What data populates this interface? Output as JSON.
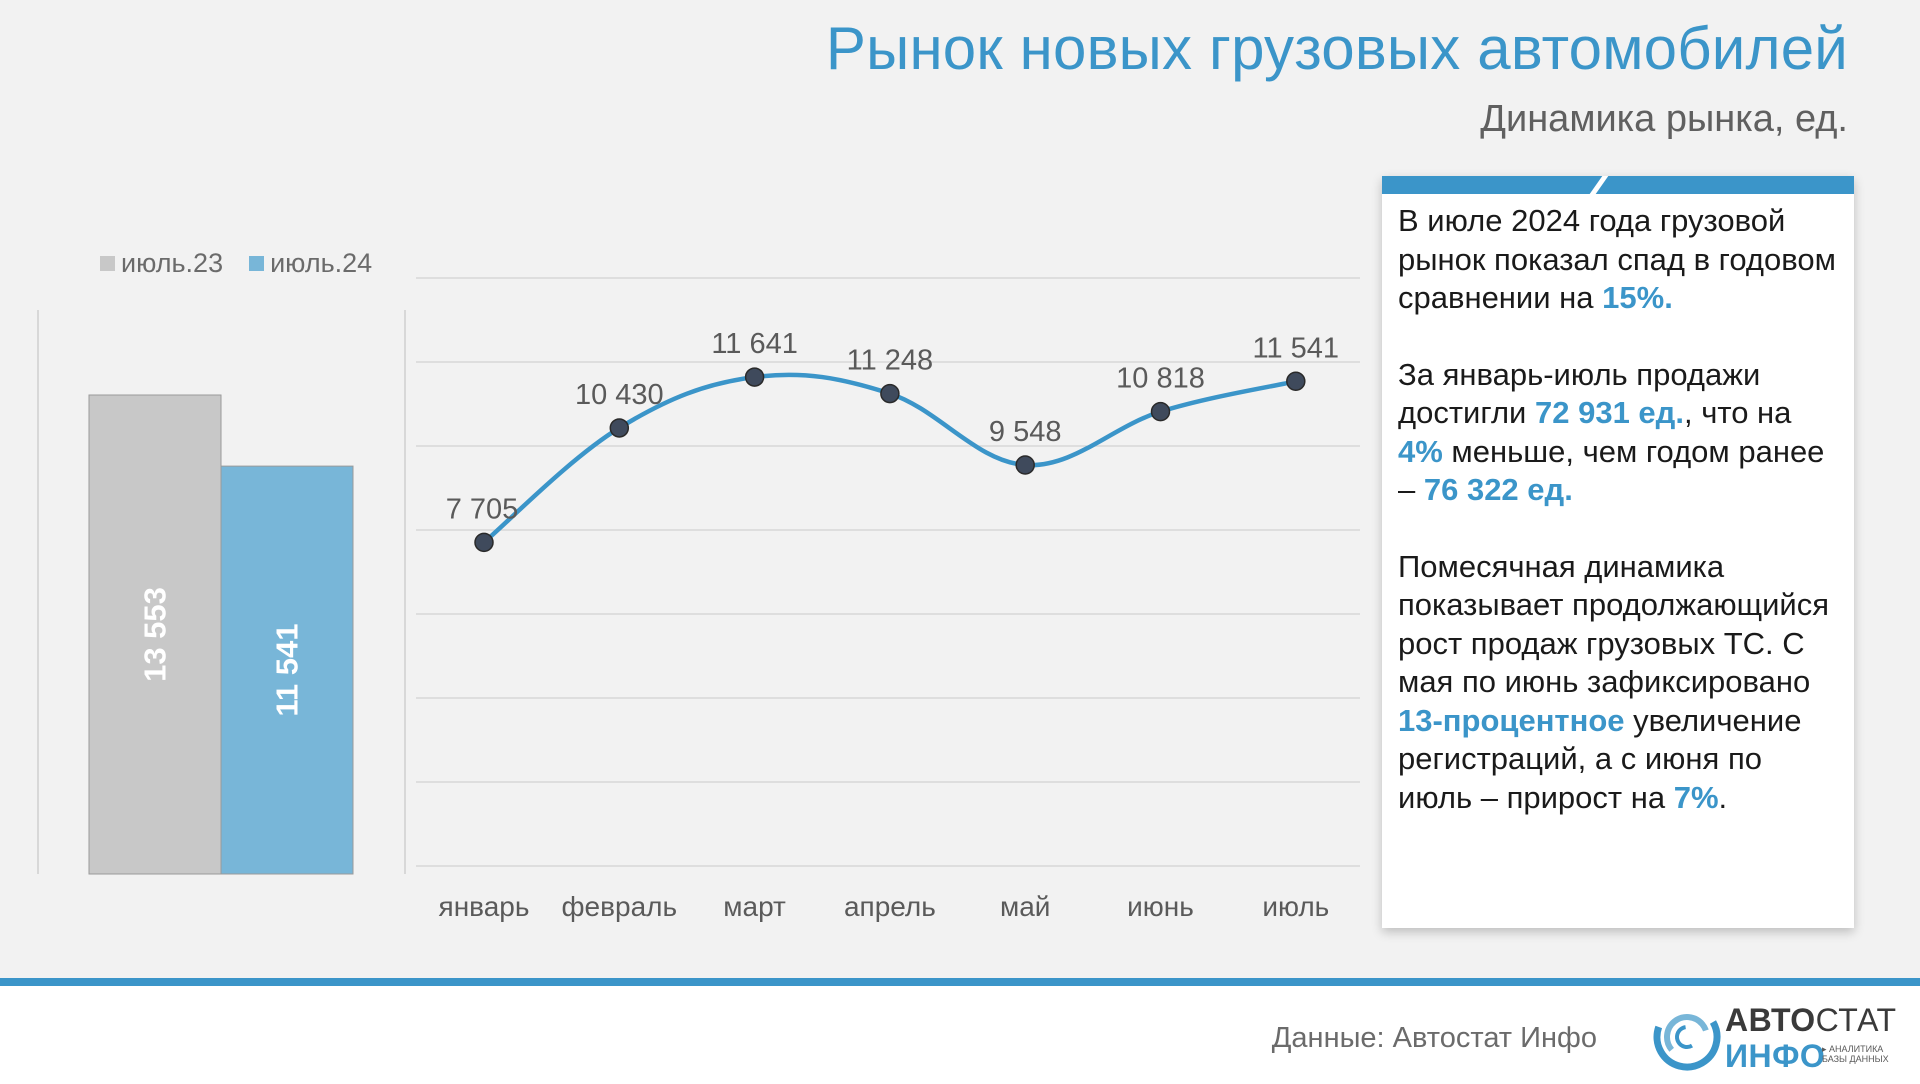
{
  "header": {
    "title": "Рынок новых грузовых автомобилей",
    "subtitle": "Динамика рынка, ед."
  },
  "legend": [
    {
      "label": "июль.23",
      "color": "#c8c8c8"
    },
    {
      "label": "июль.24",
      "color": "#78b6d8"
    }
  ],
  "chart_data": [
    {
      "type": "bar",
      "categories": [
        "июль.23",
        "июль.24"
      ],
      "values": [
        13553,
        11541
      ],
      "value_labels": [
        "13 553",
        "11 541"
      ],
      "colors": [
        "#c8c8c8",
        "#78b6d8"
      ],
      "ylim": [
        0,
        13553
      ]
    },
    {
      "type": "line",
      "categories": [
        "январь",
        "февраль",
        "март",
        "апрель",
        "май",
        "июнь",
        "июль"
      ],
      "values": [
        7705,
        10430,
        11641,
        11248,
        9548,
        10818,
        11541
      ],
      "value_labels": [
        "7 705",
        "10 430",
        "11 641",
        "11 248",
        "9 548",
        "10 818",
        "11 541"
      ],
      "line_color": "#3b95c9",
      "marker_color": "#3f4a5c",
      "grid": true,
      "ylim": [
        0,
        14000
      ]
    }
  ],
  "textbox": {
    "p1_a": "В июле 2024 года грузовой рынок показал спад в годовом сравнении на ",
    "p1_b": "15%.",
    "p2_a": "За январь-июль продажи достигли ",
    "p2_b": "72 931 ед.",
    "p2_c": ", что на ",
    "p2_d": "4%",
    "p2_e": " меньше, чем годом ранее – ",
    "p2_f": "76 322 ед.",
    "p3_a": "Помесячная динамика показывает продолжающийся рост продаж грузовых ТС. С мая по июнь зафиксировано ",
    "p3_b": "13-процентное",
    "p3_c": " увеличение регистраций, а с июня по июль – прирост на ",
    "p3_d": "7%",
    "p3_e": "."
  },
  "footer": {
    "source": "Данные: Автостат Инфо",
    "logo_top_bold": "АВТО",
    "logo_top_light": "СТАТ",
    "logo_bottom": "ИНФО",
    "logo_tagline": "▸ АНАЛИТИКА БАЗЫ ДАННЫХ"
  },
  "colors": {
    "accent": "#3b95c9",
    "background": "#f2f2f2"
  }
}
